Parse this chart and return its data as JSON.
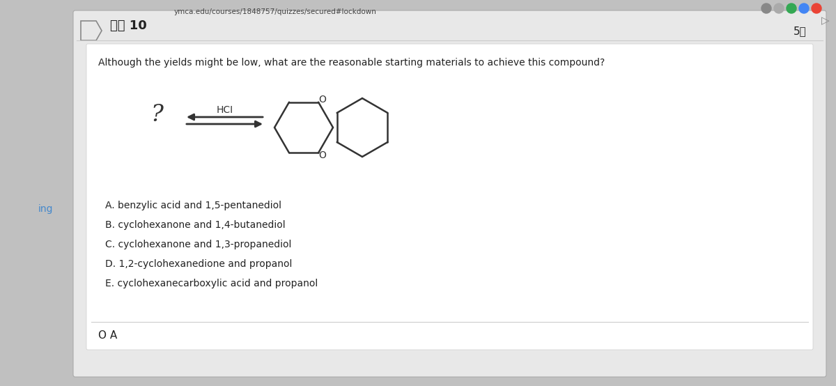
{
  "bg_color": "#c0c0c0",
  "card_bg": "#e8e8e8",
  "inner_bg": "#ffffff",
  "header_bg": "#e8e8e8",
  "url_text": "ymca.edu/courses/1848757/quizzes/secured#lockdown",
  "question_num": "问题 10",
  "points": "5分",
  "question_text": "Although the yields might be low, what are the reasonable starting materials to achieve this compound?",
  "reagent": "HCI",
  "options": [
    "A. benzylic acid and 1,5-pentanediol",
    "B. cyclohexanone and 1,4-butanediol",
    "C. cyclohexanone and 1,3-propanediol",
    "D. 1,2-cyclohexanedione and propanol",
    "E. cyclohexanecarboxylic acid and propanol"
  ],
  "selected": "O A",
  "sidebar_text": "ing",
  "sidebar_color": "#4488cc",
  "text_color": "#222222",
  "line_color": "#333333"
}
